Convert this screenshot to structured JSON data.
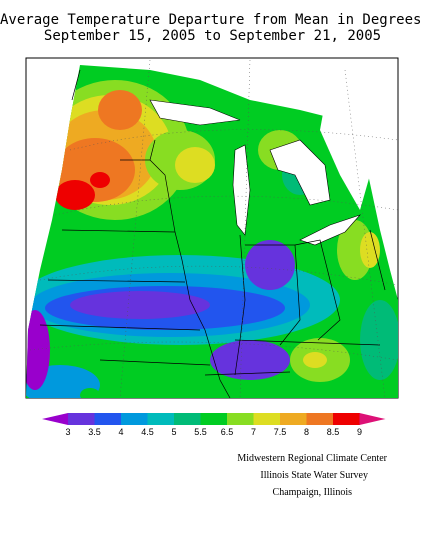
{
  "title_line1": "Average Temperature Departure from Mean in Degrees F",
  "title_line2": "September 15, 2005 to September 21, 2005",
  "legend": {
    "ticks": [
      "3",
      "3.5",
      "4",
      "4.5",
      "5",
      "5.5",
      "6.5",
      "7",
      "7.5",
      "8",
      "8.5",
      "9"
    ],
    "colors": [
      "#9900cc",
      "#6633dd",
      "#2255ee",
      "#0099dd",
      "#00bbbb",
      "#00bb77",
      "#00cc22",
      "#88dd22",
      "#dddd22",
      "#eeaa22",
      "#ee7722",
      "#ee0000",
      "#dd1177"
    ]
  },
  "credits": {
    "line1": "Midwestern Regional Climate Center",
    "line2": "Illinois State Water Survey",
    "line3": "Champaign, Illinois"
  }
}
